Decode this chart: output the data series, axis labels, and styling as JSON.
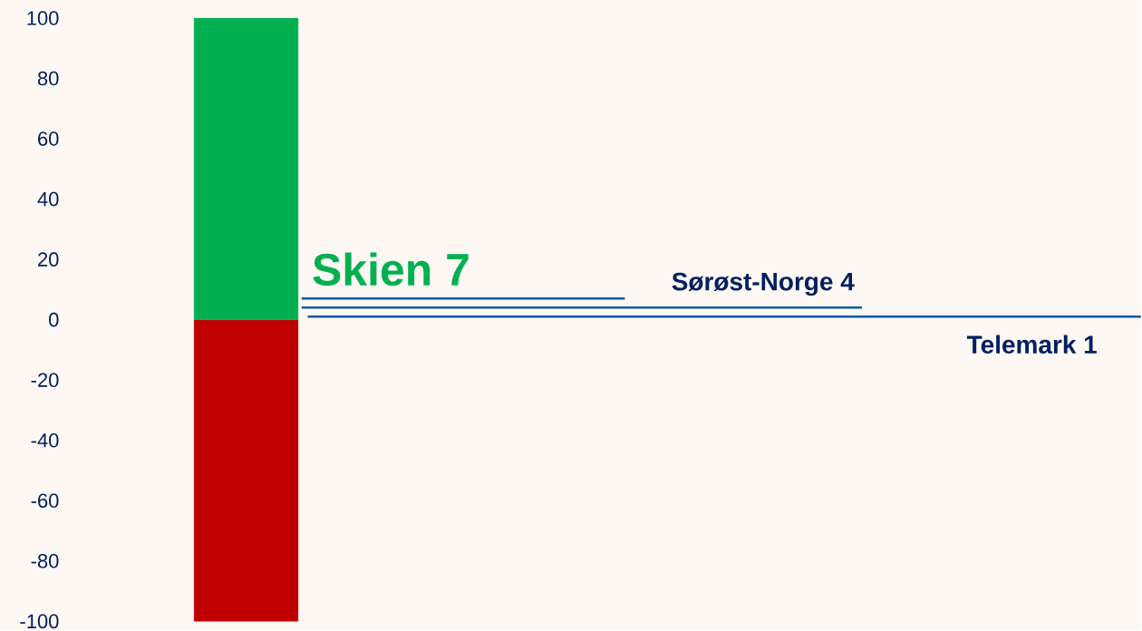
{
  "chart_data": {
    "type": "bar",
    "categories": [
      null
    ],
    "series": [
      {
        "color": "#c00000",
        "values": [
          -100
        ]
      },
      {
        "color": "#00b050",
        "values": [
          100
        ]
      }
    ],
    "ylim": [
      -100,
      100
    ],
    "yticks": [
      -100,
      -80,
      -60,
      -40,
      -20,
      0,
      20,
      40,
      60,
      80,
      100
    ],
    "grid": false,
    "stacked": true,
    "ref_lines": [
      {
        "axis": "y",
        "value": 7,
        "label": "Skien 7",
        "color": "#0b5aa8"
      },
      {
        "axis": "y",
        "value": 4,
        "label": "Sørøst-Norge 4",
        "color": "#0b5aa8"
      },
      {
        "axis": "y",
        "value": 1,
        "label": "Telemark 1",
        "color": "#0b5aa8"
      }
    ]
  }
}
